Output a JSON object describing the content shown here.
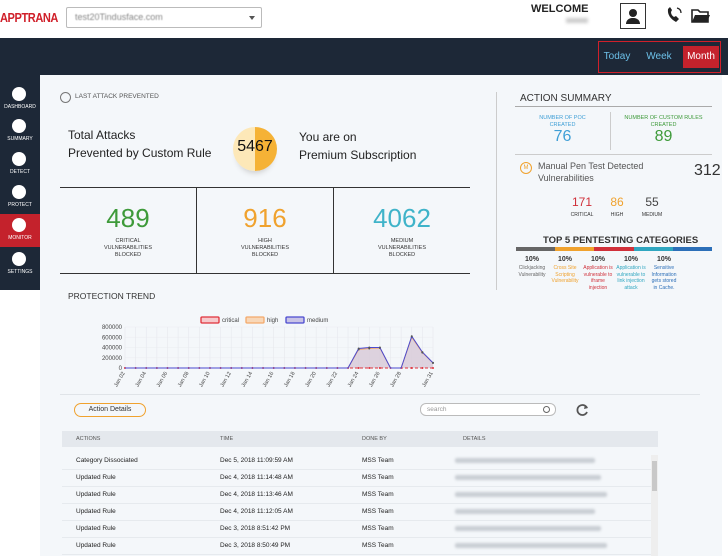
{
  "header": {
    "logo": "APPTRANA",
    "domain": "test20Tindusface.com",
    "welcome": "WELCOME"
  },
  "period": {
    "buttons": [
      "Today",
      "Week",
      "Month"
    ],
    "active": "Month"
  },
  "sidebar": {
    "items": [
      "DASHBOARD",
      "SUMMARY",
      "DETECT",
      "PROTECT",
      "MONITOR",
      "SETTINGS"
    ],
    "active": "MONITOR"
  },
  "last_attack": {
    "heading": "LAST ATTACK PREVENTED",
    "total_line1": "Total Attacks",
    "total_line2": "Prevented by Custom Rule",
    "total": 5467,
    "subscription_line1": "You are on",
    "subscription_line2": "Premium Subscription"
  },
  "blocked": [
    {
      "value": 489,
      "label": "CRITICAL VULNERABILITIES BLOCKED",
      "color": "#3e9a3a"
    },
    {
      "value": 916,
      "label": "HIGH VULNERABILITIES BLOCKED",
      "color": "#f0a22e"
    },
    {
      "value": 4062,
      "label": "MEDIUM VULNERABILITIES BLOCKED",
      "color": "#3fb3c9"
    }
  ],
  "chart_data": {
    "type": "line",
    "title": "PROTECTION TREND",
    "categories": [
      "Jan 02",
      null,
      "Jan 04",
      null,
      "Jan 06",
      null,
      "Jan 08",
      null,
      "Jan 10",
      null,
      "Jan 12",
      null,
      "Jan 14",
      null,
      "Jan 16",
      null,
      "Jan 18",
      null,
      "Jan 20",
      null,
      "Jan 22",
      null,
      "Jan 24",
      null,
      "Jan 26",
      null,
      "Jan 28",
      null,
      null,
      "Jan 31"
    ],
    "series": [
      {
        "name": "critical",
        "color": "#e0303a",
        "fill": "#f6c9cc",
        "values": [
          0,
          0,
          0,
          0,
          0,
          0,
          0,
          0,
          0,
          0,
          0,
          0,
          0,
          0,
          0,
          0,
          0,
          0,
          0,
          0,
          0,
          0,
          0,
          0,
          0,
          0,
          0,
          0,
          0,
          0
        ]
      },
      {
        "name": "high",
        "color": "#f3a96b",
        "fill": "#f8d7b8",
        "values": [
          0,
          0,
          0,
          0,
          0,
          0,
          0,
          0,
          0,
          0,
          0,
          0,
          0,
          0,
          0,
          0,
          0,
          0,
          0,
          0,
          0,
          0,
          360000,
          380000,
          390000,
          0,
          0,
          600000,
          300000,
          100000
        ]
      },
      {
        "name": "medium",
        "color": "#4a4ad0",
        "fill": "#c9c3e6",
        "values": [
          0,
          0,
          0,
          0,
          0,
          0,
          0,
          0,
          0,
          0,
          0,
          0,
          0,
          0,
          0,
          0,
          0,
          0,
          0,
          0,
          0,
          0,
          380000,
          400000,
          400000,
          0,
          0,
          620000,
          310000,
          100000
        ]
      }
    ],
    "ylim": [
      0,
      800000
    ],
    "yticks": [
      0,
      200000,
      400000,
      600000,
      800000
    ]
  },
  "action_summary": {
    "title": "ACTION SUMMARY",
    "poc_label": "NUMBER OF POC CREATED",
    "poc": 76,
    "rules_label": "NUMBER OF CUSTOM RULES CREATED",
    "rules": 89,
    "manual_badge": "M",
    "manual_label": "Manual Pen Test Detected Vulnerabilities",
    "manual_total": 312,
    "severities": [
      {
        "value": 171,
        "label": "CRITICAL",
        "color": "#d0303a"
      },
      {
        "value": 86,
        "label": "HIGH",
        "color": "#f0a22e"
      },
      {
        "value": 55,
        "label": "MEDIUM",
        "color": "#444444"
      }
    ],
    "top5_title": "TOP 5 PENTESTING CATEGORIES",
    "top5": [
      {
        "percent": "10%",
        "label": "Clickjacking Vulnerability",
        "color": "#666666"
      },
      {
        "percent": "10%",
        "label": "Cross Site Scripting Vulnerability",
        "color": "#f0a22e"
      },
      {
        "percent": "10%",
        "label": "Application is vulnerable to iframe injection",
        "color": "#d0303a"
      },
      {
        "percent": "10%",
        "label": "Application is vulnerable to link injection attack",
        "color": "#2fa6c0"
      },
      {
        "percent": "10%",
        "label": "Sensitive Information gets stored in Cache.",
        "color": "#2c6fb8"
      }
    ]
  },
  "table": {
    "button": "Action Details",
    "search": "search",
    "columns": [
      "ACTIONS",
      "TIME",
      "DONE BY",
      "DETAILS"
    ],
    "rows": [
      [
        "Category Dissociated",
        "Dec 5, 2018 11:09:59 AM",
        "MSS Team"
      ],
      [
        "Updated Rule",
        "Dec 4, 2018 11:14:48 AM",
        "MSS Team"
      ],
      [
        "Updated Rule",
        "Dec 4, 2018 11:13:46 AM",
        "MSS Team"
      ],
      [
        "Updated Rule",
        "Dec 4, 2018 11:12:05 AM",
        "MSS Team"
      ],
      [
        "Updated Rule",
        "Dec 3, 2018 8:51:42 PM",
        "MSS Team"
      ],
      [
        "Updated Rule",
        "Dec 3, 2018 8:50:49 PM",
        "MSS Team"
      ]
    ]
  }
}
